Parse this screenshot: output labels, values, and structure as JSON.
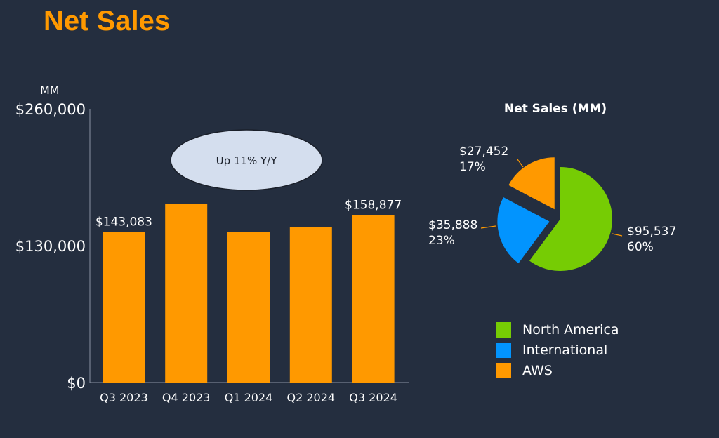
{
  "title": "Net Sales",
  "chart_data": [
    {
      "type": "bar",
      "title": "",
      "ylabel": "MM",
      "ylim": [
        0,
        260000
      ],
      "yticks": [
        "$0",
        "$130,000",
        "$260,000"
      ],
      "ytick_values": [
        0,
        130000,
        260000
      ],
      "categories": [
        "Q3 2023",
        "Q4 2023",
        "Q1 2024",
        "Q2 2024",
        "Q3 2024"
      ],
      "values": [
        143083,
        169961,
        143313,
        147977,
        158877
      ],
      "data_labels": {
        "0": "$143,083",
        "4": "$158,877"
      },
      "annotation": "Up 11% Y/Y",
      "color": "#ff9900"
    },
    {
      "type": "pie",
      "title": "Net Sales (MM)",
      "slices": [
        {
          "name": "North America",
          "value": 95537,
          "label": "$95,537",
          "pct": "60%",
          "color": "#76cc04"
        },
        {
          "name": "International",
          "value": 35888,
          "label": "$35,888",
          "pct": "23%",
          "color": "#0294fe"
        },
        {
          "name": "AWS",
          "value": 27452,
          "label": "$27,452",
          "pct": "17%",
          "color": "#ff9900"
        }
      ],
      "legend": "bottom"
    }
  ]
}
